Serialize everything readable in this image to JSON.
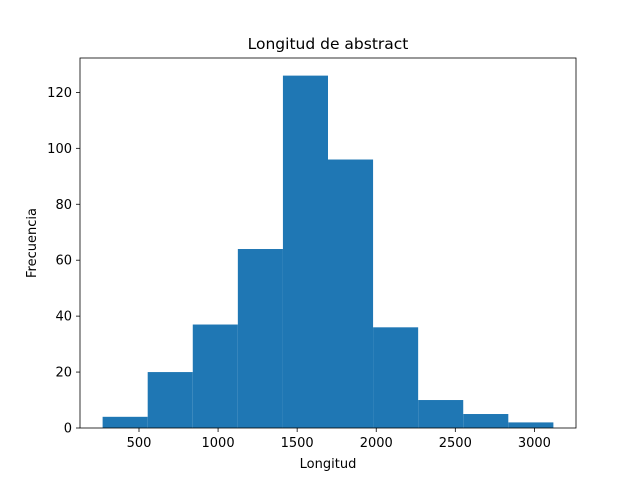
{
  "chart_data": {
    "type": "bar",
    "title": "Longitud de abstract",
    "xlabel": "Longitud",
    "ylabel": "Frecuencia",
    "bar_color": "#1f77b4",
    "bins": [
      {
        "x0": 270,
        "x1": 555,
        "count": 4
      },
      {
        "x0": 555,
        "x1": 840,
        "count": 20
      },
      {
        "x0": 840,
        "x1": 1125,
        "count": 37
      },
      {
        "x0": 1125,
        "x1": 1410,
        "count": 64
      },
      {
        "x0": 1410,
        "x1": 1695,
        "count": 126
      },
      {
        "x0": 1695,
        "x1": 1980,
        "count": 96
      },
      {
        "x0": 1980,
        "x1": 2265,
        "count": 36
      },
      {
        "x0": 2265,
        "x1": 2550,
        "count": 10
      },
      {
        "x0": 2550,
        "x1": 2835,
        "count": 5
      },
      {
        "x0": 2835,
        "x1": 3120,
        "count": 2
      }
    ],
    "xlim": [
      127,
      3263
    ],
    "ylim": [
      0,
      132.3
    ],
    "xticks": [
      500,
      1000,
      1500,
      2000,
      2500,
      3000
    ],
    "yticks": [
      0,
      20,
      40,
      60,
      80,
      100,
      120
    ],
    "grid": false,
    "legend": "none"
  }
}
